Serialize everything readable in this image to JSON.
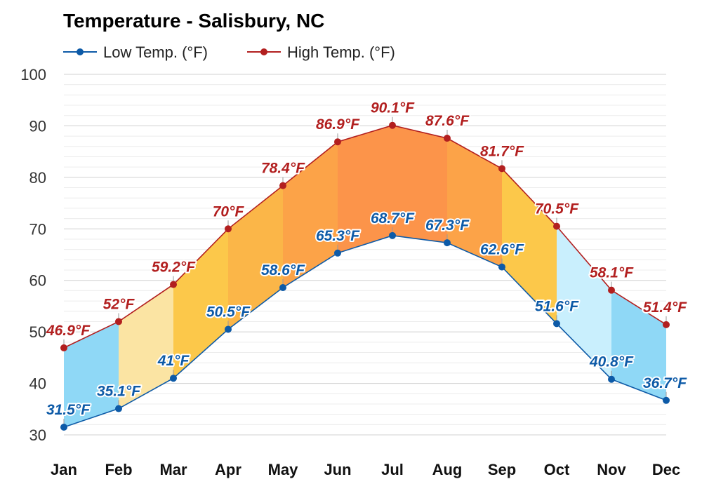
{
  "chart_data": {
    "type": "line",
    "title": "Temperature - Salisbury, NC",
    "categories": [
      "Jan",
      "Feb",
      "Mar",
      "Apr",
      "May",
      "Jun",
      "Jul",
      "Aug",
      "Sep",
      "Oct",
      "Nov",
      "Dec"
    ],
    "series": [
      {
        "name": "Low Temp. (°F)",
        "color": "#0d5aa7",
        "values": [
          31.5,
          35.1,
          41,
          50.5,
          58.6,
          65.3,
          68.7,
          67.3,
          62.6,
          51.6,
          40.8,
          36.7
        ],
        "labels": [
          "31.5°F",
          "35.1°F",
          "41°F",
          "50.5°F",
          "58.6°F",
          "65.3°F",
          "68.7°F",
          "67.3°F",
          "62.6°F",
          "51.6°F",
          "40.8°F",
          "36.7°F"
        ]
      },
      {
        "name": "High Temp. (°F)",
        "color": "#b21f1f",
        "values": [
          46.9,
          52,
          59.2,
          70,
          78.4,
          86.9,
          90.1,
          87.6,
          81.7,
          70.5,
          58.1,
          51.4
        ],
        "labels": [
          "46.9°F",
          "52°F",
          "59.2°F",
          "70°F",
          "78.4°F",
          "86.9°F",
          "90.1°F",
          "87.6°F",
          "81.7°F",
          "70.5°F",
          "58.1°F",
          "51.4°F"
        ]
      }
    ],
    "band_colors": [
      "#8fd8f6",
      "#fbe4a3",
      "#fcc84a",
      "#fbb648",
      "#fca348",
      "#fc944a",
      "#fc944a",
      "#fca348",
      "#fcc84a",
      "#c9effd",
      "#8fd8f6",
      "#8fd8f6"
    ],
    "ylim": [
      30,
      100
    ],
    "yticks": [
      "30",
      "40",
      "50",
      "60",
      "70",
      "80",
      "90",
      "100"
    ],
    "grid": true,
    "legend_position": "top-left"
  }
}
